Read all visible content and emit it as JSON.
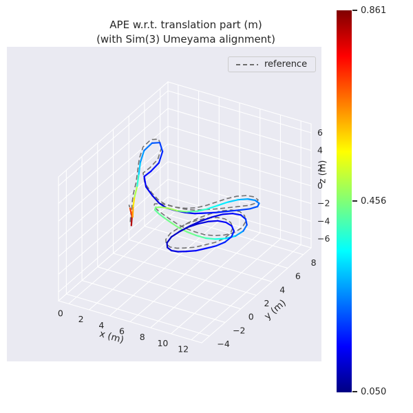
{
  "title": {
    "line1": "APE w.r.t. translation part (m)",
    "line2": "(with Sim(3) Umeyama alignment)"
  },
  "legend": {
    "items": [
      {
        "label": "reference",
        "line_style": "dashed",
        "color": "#5a5a5a"
      }
    ]
  },
  "colorbar": {
    "colormap": "jet",
    "min": 0.05,
    "max": 0.861,
    "tick_labels": {
      "top": "0.861",
      "middle": "0.456",
      "bottom": "0.050"
    }
  },
  "chart_data": {
    "type": "line",
    "projection": "3d",
    "title": "APE w.r.t. translation part (m) (with Sim(3) Umeyama alignment)",
    "view": {
      "elev": 30,
      "azim": -60
    },
    "grid": true,
    "legend_position": "upper right",
    "axes": {
      "x": {
        "label": "x (m)",
        "range": [
          -1,
          13
        ],
        "tick_values": [
          0,
          2,
          4,
          6,
          8,
          10,
          12
        ],
        "tick_labels": [
          "0",
          "2",
          "4",
          "6",
          "8",
          "10",
          "12"
        ]
      },
      "y": {
        "label": "y (m)",
        "range": [
          -5,
          9
        ],
        "tick_values": [
          -4,
          -2,
          0,
          2,
          4,
          6,
          8
        ],
        "tick_labels": [
          "−4",
          "−2",
          "0",
          "2",
          "4",
          "6",
          "8"
        ]
      },
      "z": {
        "label": "z (m)",
        "range": [
          -7,
          7
        ],
        "tick_values": [
          -6,
          -4,
          -2,
          0,
          2,
          4,
          6
        ],
        "tick_labels": [
          "−6",
          "−4",
          "−2",
          "0",
          "2",
          "4",
          "6"
        ]
      }
    },
    "colorbar": {
      "min": 0.05,
      "max": 0.861,
      "mid": 0.456,
      "colormap": "jet"
    },
    "series": [
      {
        "name": "reference",
        "style": "dashed",
        "color": "#5a5a5a",
        "offset_from_estimate": [
          -0.3,
          0.25,
          0.1
        ]
      },
      {
        "name": "estimate_colored_by_ape",
        "colormap": "jet",
        "points_xyze": [
          [
            2.3,
            0.0,
            -1.2,
            0.78
          ],
          [
            2.25,
            0.15,
            -0.3,
            0.86
          ],
          [
            2.1,
            0.1,
            0.6,
            0.74
          ],
          [
            2.2,
            0.3,
            -0.5,
            0.66
          ],
          [
            2.1,
            0.5,
            0.5,
            0.6
          ],
          [
            2.0,
            0.8,
            1.3,
            0.55
          ],
          [
            1.8,
            1.4,
            2.0,
            0.44
          ],
          [
            1.5,
            2.0,
            2.8,
            0.34
          ],
          [
            1.2,
            2.6,
            3.6,
            0.29
          ],
          [
            1.1,
            3.2,
            4.4,
            0.26
          ],
          [
            1.5,
            3.7,
            5.0,
            0.23
          ],
          [
            2.1,
            3.9,
            5.1,
            0.21
          ],
          [
            2.6,
            3.6,
            4.5,
            0.19
          ],
          [
            2.7,
            3.0,
            3.7,
            0.17
          ],
          [
            2.3,
            2.5,
            3.0,
            0.16
          ],
          [
            1.8,
            2.3,
            2.4,
            0.15
          ],
          [
            2.2,
            2.0,
            1.6,
            0.14
          ],
          [
            3.0,
            1.8,
            1.0,
            0.13
          ],
          [
            3.8,
            1.6,
            0.6,
            0.12
          ],
          [
            4.6,
            1.5,
            0.4,
            0.12
          ],
          [
            5.4,
            1.6,
            0.3,
            0.13
          ],
          [
            6.2,
            1.8,
            0.2,
            0.14
          ],
          [
            7.0,
            2.0,
            0.2,
            0.15
          ],
          [
            7.8,
            2.3,
            0.3,
            0.16
          ],
          [
            8.6,
            2.6,
            0.4,
            0.17
          ],
          [
            9.4,
            3.0,
            0.5,
            0.18
          ],
          [
            10.2,
            3.4,
            0.6,
            0.19
          ],
          [
            10.9,
            3.9,
            0.6,
            0.21
          ],
          [
            11.2,
            4.5,
            0.5,
            0.22
          ],
          [
            10.9,
            5.1,
            0.3,
            0.24
          ],
          [
            10.2,
            5.5,
            0.1,
            0.26
          ],
          [
            9.4,
            5.6,
            -0.1,
            0.28
          ],
          [
            8.6,
            5.4,
            -0.3,
            0.3
          ],
          [
            7.9,
            5.0,
            -0.5,
            0.33
          ],
          [
            7.3,
            4.5,
            -0.7,
            0.35
          ],
          [
            6.7,
            4.0,
            -0.9,
            0.38
          ],
          [
            6.0,
            3.6,
            -1.1,
            0.41
          ],
          [
            5.2,
            3.3,
            -1.2,
            0.44
          ],
          [
            4.4,
            3.1,
            -1.2,
            0.47
          ],
          [
            3.7,
            3.0,
            -1.1,
            0.5
          ],
          [
            3.2,
            2.7,
            -0.9,
            0.48
          ],
          [
            3.0,
            2.2,
            -0.6,
            0.46
          ],
          [
            3.3,
            1.7,
            -0.4,
            0.44
          ],
          [
            4.0,
            1.3,
            -0.3,
            0.43
          ],
          [
            4.8,
            1.0,
            -0.3,
            0.44
          ],
          [
            5.6,
            0.8,
            -0.4,
            0.45
          ],
          [
            6.4,
            0.7,
            -0.6,
            0.46
          ],
          [
            7.2,
            0.7,
            -0.8,
            0.45
          ],
          [
            8.0,
            0.8,
            -1.0,
            0.44
          ],
          [
            8.8,
            1.0,
            -1.2,
            0.42
          ],
          [
            9.5,
            1.3,
            -1.3,
            0.39
          ],
          [
            10.2,
            1.7,
            -1.3,
            0.35
          ],
          [
            10.8,
            2.2,
            -1.2,
            0.3
          ],
          [
            11.1,
            2.8,
            -1.0,
            0.26
          ],
          [
            11.0,
            3.4,
            -0.8,
            0.22
          ],
          [
            10.5,
            3.9,
            -0.7,
            0.19
          ],
          [
            9.8,
            4.2,
            -0.7,
            0.17
          ],
          [
            9.0,
            4.2,
            -0.8,
            0.15
          ],
          [
            8.2,
            4.0,
            -1.0,
            0.14
          ],
          [
            7.4,
            3.6,
            -1.3,
            0.13
          ],
          [
            6.7,
            3.1,
            -1.6,
            0.12
          ],
          [
            6.1,
            2.5,
            -1.9,
            0.11
          ],
          [
            5.6,
            1.9,
            -2.2,
            0.11
          ],
          [
            5.3,
            1.2,
            -2.4,
            0.1
          ],
          [
            5.4,
            0.5,
            -2.5,
            0.1
          ],
          [
            5.9,
            -0.1,
            -2.4,
            0.11
          ],
          [
            6.6,
            -0.5,
            -2.2,
            0.12
          ],
          [
            7.4,
            -0.7,
            -1.9,
            0.13
          ],
          [
            8.2,
            -0.7,
            -1.6,
            0.14
          ],
          [
            9.0,
            -0.5,
            -1.4,
            0.15
          ],
          [
            9.7,
            -0.1,
            -1.2,
            0.16
          ],
          [
            10.3,
            0.4,
            -1.1,
            0.17
          ],
          [
            10.7,
            1.0,
            -1.0,
            0.18
          ],
          [
            10.8,
            1.7,
            -0.9,
            0.18
          ],
          [
            10.5,
            2.4,
            -0.9,
            0.17
          ],
          [
            9.9,
            2.9,
            -0.9,
            0.16
          ],
          [
            9.1,
            3.2,
            -1.0,
            0.15
          ],
          [
            8.3,
            3.2,
            -1.1,
            0.14
          ],
          [
            7.5,
            3.0,
            -1.3,
            0.13
          ],
          [
            6.8,
            2.6,
            -1.5,
            0.12
          ],
          [
            6.2,
            2.1,
            -1.7,
            0.11
          ],
          [
            5.8,
            1.5,
            -1.9,
            0.1
          ]
        ]
      }
    ]
  }
}
